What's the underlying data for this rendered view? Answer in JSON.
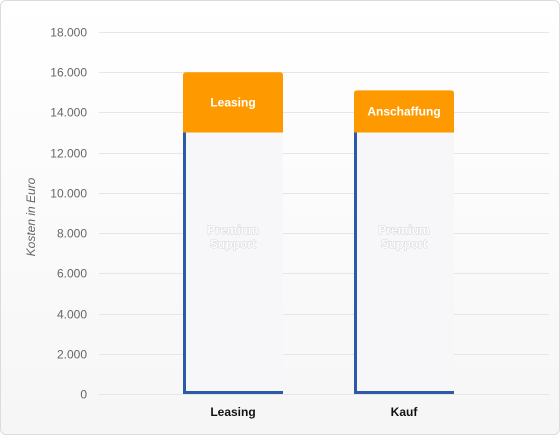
{
  "chart_data": {
    "type": "bar",
    "stacked": true,
    "categories": [
      "Leasing",
      "Kauf"
    ],
    "series": [
      {
        "values": [
          13000,
          13000
        ],
        "labels": [
          "Premium\nSupport",
          "Premium\nSupport"
        ],
        "color": "#f7f7f9",
        "border_color": "#2a5aa8"
      },
      {
        "values": [
          3000,
          2100
        ],
        "labels": [
          "Leasing",
          "Anschaffung"
        ],
        "color": "#ff9900"
      }
    ],
    "ylabel": "Kosten in Euro",
    "ylim": [
      0,
      18000
    ],
    "yticks": [
      0,
      2000,
      4000,
      6000,
      8000,
      10000,
      12000,
      14000,
      16000,
      18000
    ],
    "ytick_labels": [
      "0",
      "2.000",
      "4.000",
      "6.000",
      "8.000",
      "10.000",
      "12.000",
      "14.000",
      "16.000",
      "18.000"
    ],
    "grid": true,
    "legend": false
  }
}
